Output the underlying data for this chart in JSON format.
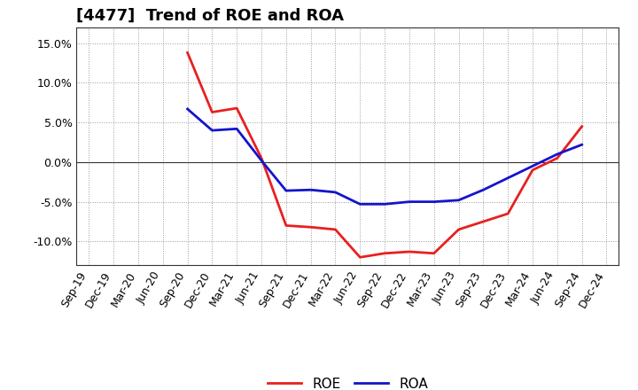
{
  "title": "[4477]  Trend of ROE and ROA",
  "dates": [
    "Sep-19",
    "Dec-19",
    "Mar-20",
    "Jun-20",
    "Sep-20",
    "Dec-20",
    "Mar-21",
    "Jun-21",
    "Sep-21",
    "Dec-21",
    "Mar-22",
    "Jun-22",
    "Sep-22",
    "Dec-22",
    "Mar-23",
    "Jun-23",
    "Sep-23",
    "Dec-23",
    "Mar-24",
    "Jun-24",
    "Sep-24",
    "Dec-24"
  ],
  "roe_values": [
    null,
    null,
    null,
    null,
    13.8,
    6.3,
    6.8,
    0.5,
    -8.0,
    -8.2,
    -8.5,
    -12.0,
    -11.5,
    -11.3,
    -11.5,
    -8.5,
    -7.5,
    -6.5,
    -1.0,
    0.5,
    4.5,
    null
  ],
  "roa_values": [
    null,
    null,
    null,
    null,
    6.7,
    4.0,
    4.2,
    0.2,
    -3.6,
    -3.5,
    -3.8,
    -5.3,
    -5.3,
    -5.0,
    -5.0,
    -4.8,
    -3.5,
    -2.0,
    -0.5,
    1.0,
    2.2,
    null
  ],
  "roe_color": "#e82020",
  "roa_color": "#1414cc",
  "ylim": [
    -13.0,
    17.0
  ],
  "yticks": [
    -10.0,
    -5.0,
    0.0,
    5.0,
    10.0,
    15.0
  ],
  "background_color": "#ffffff",
  "grid_color": "#999999",
  "line_width": 2.0,
  "title_fontsize": 13,
  "tick_fontsize": 9,
  "legend_fontsize": 11
}
